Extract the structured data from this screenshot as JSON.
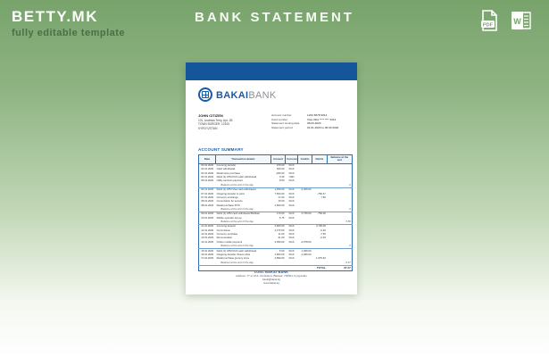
{
  "page": {
    "brand": "BETTY.MK",
    "tagline": "fully editable template",
    "title": "BANK STATEMENT",
    "icons": {
      "pdf_label": "PDF",
      "word_label": "W"
    },
    "colors": {
      "background_green": "#78a36b",
      "accent_blue": "#15569b",
      "white": "#ffffff"
    }
  },
  "document": {
    "logo": {
      "bold": "BAKAI",
      "light": "BANK"
    },
    "customer": {
      "name": "JOHN CITIZEN",
      "address_lines": [
        "101, Andreas Terry, Apt. 2B",
        "TOWN BORDER, 12345",
        "KYRGYZSTAN"
      ]
    },
    "meta": [
      {
        "label": "Account number",
        "value": "1234 5678 9014"
      },
      {
        "label": "Card number",
        "value": "Visa 4111 **** **** 2314"
      },
      {
        "label": "Statement issuing date",
        "value": "08.03.2020"
      },
      {
        "label": "Statement period",
        "value": "01.01.2020 to 08.03.2020"
      }
    ],
    "section_title": "ACCOUNT SUMMARY",
    "table": {
      "headers": [
        "Date",
        "Transaction details",
        "Amount",
        "Currency",
        "Credits",
        "Debits",
        "Balance at the end"
      ],
      "rows": [
        [
          "03.01.2020",
          "Incoming transfer",
          "270.00",
          "KGS",
          "",
          "",
          ""
        ],
        [
          "03.01.2020",
          "Cash withdrawal",
          "400.00",
          "KGS",
          "",
          "",
          ""
        ],
        [
          "04.01.2020",
          "Retail store purchase",
          "-200.00",
          "KGS",
          "",
          "",
          ""
        ],
        [
          "04.01.2020",
          "Debit (1) ATM KGS cash withdrawal",
          "0.30",
          "USD",
          "",
          "",
          ""
        ],
        [
          "05.01.2020",
          "Utility services payment",
          "8.50",
          "KGS",
          "",
          "",
          ""
        ],
        [
          "",
          "Balance at the end of the day",
          "",
          "",
          "",
          "",
          "0"
        ],
        [
          "06.01.2020",
          "Debit (1) ATM Visa cash withdrawal",
          "1,250.00",
          "KGS",
          "-2,025.00",
          "",
          ""
        ],
        [
          "07.01.2020",
          "Outgoing transfer to card",
          "7,564.00",
          "KGS",
          "",
          "-750.47",
          ""
        ],
        [
          "07.01.2020",
          "Currency exchange",
          "17.00",
          "KGS",
          "",
          "7.50",
          ""
        ],
        [
          "08.01.2020",
          "Commission for service",
          "15.00",
          "KGS",
          "",
          "",
          ""
        ],
        [
          "08.01.2020",
          "Retail purchase POS",
          "1,500.00",
          "KGS",
          "",
          "",
          ""
        ],
        [
          "",
          "Balance at the end of the day",
          "",
          "",
          "",
          "",
          "0"
        ],
        [
          "09.01.2020",
          "Debit (1) ATM cash withdrawal Bishkek",
          "170.00",
          "KGS",
          "4,736.00",
          "-750.00",
          ""
        ],
        [
          "10.01.2020",
          "Mobile operator top-up",
          "5.75",
          "KGS",
          "",
          "",
          ""
        ],
        [
          "",
          "Balance at the end of the day",
          "",
          "",
          "",
          "",
          "5.80"
        ],
        [
          "11.01.2020",
          "Incoming deposit",
          "4,500.00",
          "KGS",
          "",
          "4,736.00",
          ""
        ],
        [
          "12.01.2020",
          "Commission",
          "2,470.00",
          "KGS",
          "",
          "-0.30",
          ""
        ],
        [
          "12.01.2020",
          "Currency purchase",
          "11.00",
          "KGS",
          "",
          "-7.50",
          ""
        ],
        [
          "13.01.2020",
          "Remuneration",
          "21.00",
          "KGS",
          "",
          "-0.20",
          ""
        ],
        [
          "14.01.2020",
          "Online mobile payment",
          "3,059.00",
          "KGS",
          "-2,678.00",
          "",
          ""
        ],
        [
          "",
          "Balance at the end of the day",
          "",
          "",
          "",
          "",
          "0"
        ],
        [
          "15.01.2020",
          "Debit (1) ATM KGS cash withdrawal",
          "5.00",
          "KGS",
          "1,936.00",
          "",
          ""
        ],
        [
          "16.01.2020",
          "Outgoing transfer Visa-to-Visa",
          "1,500.00",
          "KGS",
          "-1,936.00",
          "",
          ""
        ],
        [
          "17.01.2020",
          "Retail purchase grocery store",
          "2,890.00",
          "KGS",
          "",
          "1,975.62",
          ""
        ],
        [
          "",
          "Balance at the end of the day",
          "",
          "",
          "",
          "",
          "-5.47"
        ]
      ],
      "total_label": "TOTAL",
      "total_value": "27.27"
    },
    "footer": {
      "bank": "OJSC BAKAI BANK",
      "lines": [
        "Address: 77 st. M.A. Orozbekov, Bishkek, 720001, Kyrgyzstan",
        "bank@bakai.kg",
        "www.bakai.kg"
      ]
    }
  }
}
